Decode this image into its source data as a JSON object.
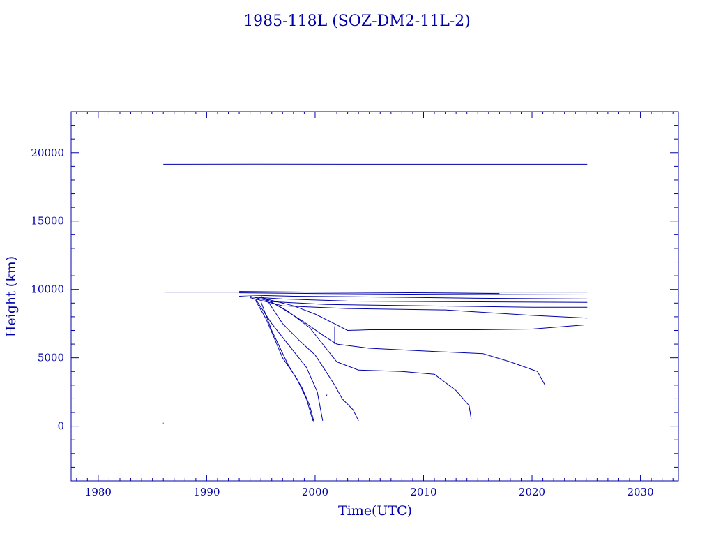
{
  "chart_data": {
    "type": "line",
    "title": "1985-118L (SOZ-DM2-11L-2)",
    "xlabel": "Time(UTC)",
    "ylabel": "Height (km)",
    "xlim": [
      1977.5,
      2033.5
    ],
    "ylim": [
      -4000,
      23000
    ],
    "x_ticks": [
      1980,
      1990,
      2000,
      2010,
      2020,
      2030
    ],
    "x_tick_labels": [
      "1980",
      "1990",
      "2000",
      "2010",
      "2020",
      "2030"
    ],
    "y_ticks": [
      0,
      5000,
      10000,
      15000,
      20000
    ],
    "y_tick_labels": [
      "0",
      "5000",
      "10000",
      "15000",
      "20000"
    ],
    "grid": false,
    "legend": "none",
    "color": "#0000aa",
    "series": [
      {
        "x": [
          1986.0,
          1994.0,
          2005.0,
          2015.0,
          2025.1
        ],
        "y": [
          19150,
          19160,
          19150,
          19150,
          19150
        ]
      },
      {
        "x": [
          1986.1,
          1992.0,
          1994.0,
          2000.0,
          2025.1
        ],
        "y": [
          9800,
          9800,
          9800,
          9800,
          9800
        ]
      },
      {
        "x": [
          1993.0,
          2000.0,
          2010.0,
          2017.0
        ],
        "y": [
          9850,
          9800,
          9750,
          9700
        ]
      },
      {
        "x": [
          1993.0,
          2000.0,
          2010.0,
          2025.1
        ],
        "y": [
          9750,
          9700,
          9650,
          9600
        ]
      },
      {
        "x": [
          1993.0,
          1998.0,
          2005.0,
          2015.0,
          2025.1
        ],
        "y": [
          9600,
          9500,
          9450,
          9350,
          9300
        ]
      },
      {
        "x": [
          1993.0,
          1997.0,
          2003.0,
          2012.0,
          2025.1
        ],
        "y": [
          9500,
          9300,
          9150,
          9100,
          9050
        ]
      },
      {
        "x": [
          1994.0,
          1996.0,
          2001.0,
          2010.0,
          2020.0,
          2025.1
        ],
        "y": [
          9500,
          9100,
          8900,
          8800,
          8700,
          8700
        ]
      },
      {
        "x": [
          1994.0,
          1997.0,
          2003.0,
          2012.0,
          2020.0,
          2025.1
        ],
        "y": [
          9400,
          8800,
          8600,
          8500,
          8100,
          7900
        ]
      },
      {
        "x": [
          1995.0,
          1998.0,
          2000.0,
          2002.0,
          2003.0,
          2005.0,
          2015.0,
          2020.0,
          2024.8
        ],
        "y": [
          9400,
          8800,
          8200,
          7400,
          7000,
          7050,
          7050,
          7100,
          7400
        ]
      },
      {
        "x": [
          1995.0,
          1997.0,
          1999.0,
          2001.0,
          2002.0,
          2005.0,
          2010.0,
          2015.5,
          2018.0,
          2020.5,
          2021.2
        ],
        "y": [
          9500,
          8600,
          7600,
          6500,
          6000,
          5700,
          5500,
          5300,
          4700,
          4000,
          3000
        ]
      },
      {
        "x": [
          1995.0,
          1997.5,
          1999.5,
          2001.0,
          2002.0,
          2004.0,
          2008.0,
          2011.0,
          2013.0,
          2014.2,
          2014.4
        ],
        "y": [
          9500,
          8400,
          7200,
          5700,
          4700,
          4100,
          4000,
          3800,
          2600,
          1500,
          500
        ]
      },
      {
        "x": [
          1995.5,
          1997.0,
          1998.5,
          2000.0,
          2001.0,
          2001.8,
          2002.5,
          2003.5,
          2004.0
        ],
        "y": [
          9300,
          7500,
          6300,
          5200,
          4000,
          3000,
          2000,
          1200,
          400
        ]
      },
      {
        "x": [
          1994.5,
          1996.0,
          1998.0,
          1999.2,
          2000.2,
          2000.7
        ],
        "y": [
          9300,
          7500,
          5500,
          4300,
          2500,
          400
        ]
      },
      {
        "x": [
          1994.5,
          1995.5,
          1997.0,
          1998.3,
          1999.2,
          1999.8
        ],
        "y": [
          9200,
          7800,
          5000,
          3500,
          2000,
          400
        ]
      },
      {
        "x": [
          1995.0,
          1996.0,
          1997.5,
          1998.8,
          1999.5,
          1999.9
        ],
        "y": [
          9100,
          7000,
          4500,
          2800,
          1500,
          300
        ]
      },
      {
        "x": [
          2001.8,
          2001.8
        ],
        "y": [
          7300,
          6000
        ]
      },
      {
        "x": [
          2001.0,
          2001.1
        ],
        "y": [
          2200,
          2300
        ]
      },
      {
        "x": [
          1986.0,
          1986.0
        ],
        "y": [
          200,
          250
        ]
      }
    ]
  }
}
